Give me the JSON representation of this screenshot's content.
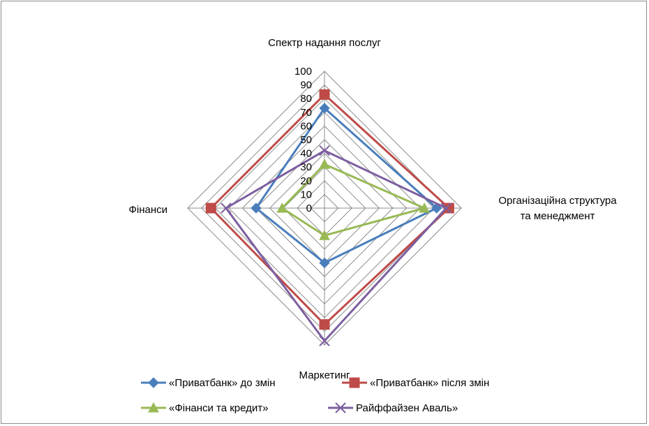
{
  "chart_data": {
    "type": "radar",
    "title": "",
    "categories": [
      "Спектр надання послуг",
      "Організаційна структура та менеджмент",
      "Маркетинг",
      "Фінанси"
    ],
    "category_lines": [
      [
        "Спектр надання послуг"
      ],
      [
        "Організаційна структура",
        "та менеджмент"
      ],
      [
        "Маркетинг"
      ],
      [
        "Фінанси"
      ]
    ],
    "rlim": [
      0,
      100
    ],
    "ticks": [
      0,
      10,
      20,
      30,
      40,
      50,
      60,
      70,
      80,
      90,
      100
    ],
    "tick_labels": [
      "0",
      "10",
      "20",
      "30",
      "40",
      "50",
      "60",
      "70",
      "80",
      "90",
      "100"
    ],
    "grid": true,
    "legend_position": "bottom",
    "series": [
      {
        "name": "«Приватбанк» до змін",
        "values": [
          73,
          82,
          40,
          50
        ],
        "color": "#4a7ebb",
        "marker": "diamond"
      },
      {
        "name": "«Приватбанк» після змін",
        "values": [
          83,
          91,
          85,
          83
        ],
        "color": "#be4b48",
        "marker": "square"
      },
      {
        "name": "«Фінанси та кредит»",
        "values": [
          32,
          73,
          20,
          31
        ],
        "color": "#98b954",
        "marker": "triangle"
      },
      {
        "name": "Райффайзен Аваль»",
        "values": [
          42,
          89,
          97,
          72
        ],
        "color": "#7d5fa0",
        "marker": "x"
      }
    ]
  }
}
